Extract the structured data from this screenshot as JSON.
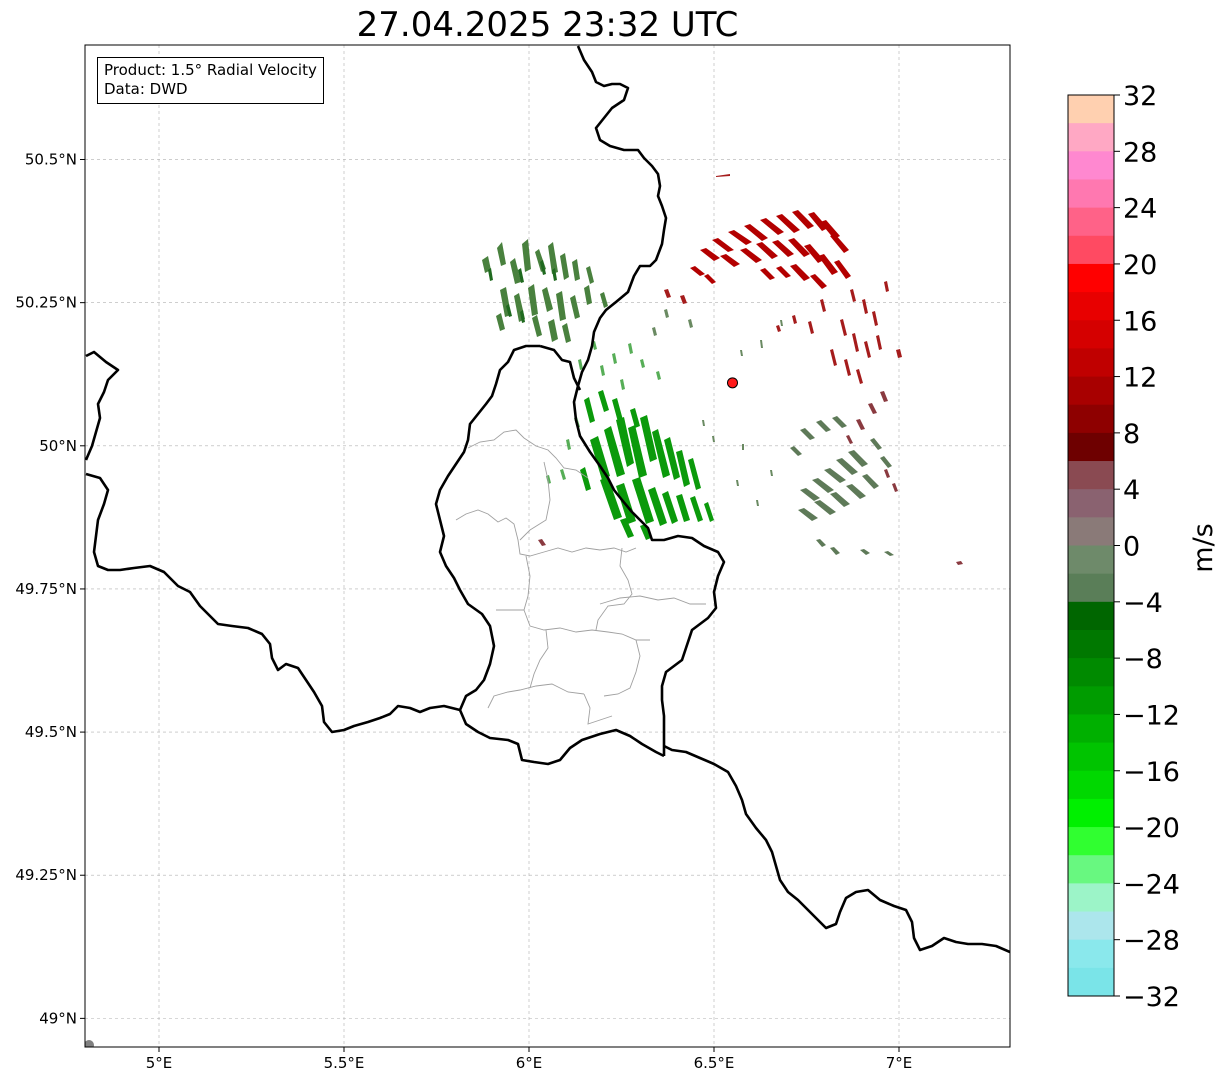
{
  "title": "27.04.2025 23:32 UTC",
  "info": {
    "product_line": "Product: 1.5° Radial Velocity",
    "data_line": "Data: DWD"
  },
  "map": {
    "lon_range": [
      4.8,
      7.3
    ],
    "lat_range": [
      48.95,
      50.7
    ],
    "lon_ticks": [
      {
        "value": 5.0,
        "label": "5°E"
      },
      {
        "value": 5.5,
        "label": "5.5°E"
      },
      {
        "value": 6.0,
        "label": "6°E"
      },
      {
        "value": 6.5,
        "label": "6.5°E"
      },
      {
        "value": 7.0,
        "label": "7°E"
      }
    ],
    "lat_ticks": [
      {
        "value": 49.0,
        "label": "49°N"
      },
      {
        "value": 49.25,
        "label": "49.25°N"
      },
      {
        "value": 49.5,
        "label": "49.5°N"
      },
      {
        "value": 49.75,
        "label": "49.75°N"
      },
      {
        "value": 50.0,
        "label": "50°N"
      },
      {
        "value": 50.25,
        "label": "50.25°N"
      },
      {
        "value": 50.5,
        "label": "50.5°N"
      }
    ],
    "gridlines": true,
    "radar_site": {
      "lon": 6.55,
      "lat": 50.11,
      "color": "#ff1a1a"
    },
    "colors": {
      "border": "#000000",
      "district_lines": "#a0a0a0",
      "grid": "#b0b0b0"
    }
  },
  "colorbar": {
    "unit": "m/s",
    "range": [
      -32,
      32
    ],
    "ticks": [
      32,
      28,
      24,
      20,
      16,
      12,
      8,
      4,
      0,
      -4,
      -8,
      -12,
      -16,
      -20,
      -24,
      -28,
      -32
    ],
    "tick_labels": [
      "32",
      "28",
      "24",
      "20",
      "16",
      "12",
      "8",
      "4",
      "0",
      "−4",
      "−8",
      "−12",
      "−16",
      "−20",
      "−24",
      "−28",
      "−32"
    ],
    "bands_top_to_bottom": [
      "#ffd0b0",
      "#ffa8c4",
      "#ff88d0",
      "#ff78b0",
      "#ff6288",
      "#ff4a62",
      "#ff0000",
      "#e80000",
      "#d50000",
      "#c00000",
      "#a80000",
      "#8e0000",
      "#6e0000",
      "#8a4a52",
      "#8a6270",
      "#8a7a78",
      "#6e8a6a",
      "#5a7e58",
      "#006600",
      "#007800",
      "#008a00",
      "#009c00",
      "#00b000",
      "#00c400",
      "#00d800",
      "#00f000",
      "#30ff30",
      "#68f880",
      "#9cf4c8",
      "#ace6ec",
      "#8ae8ec",
      "#7ae4e8"
    ]
  }
}
